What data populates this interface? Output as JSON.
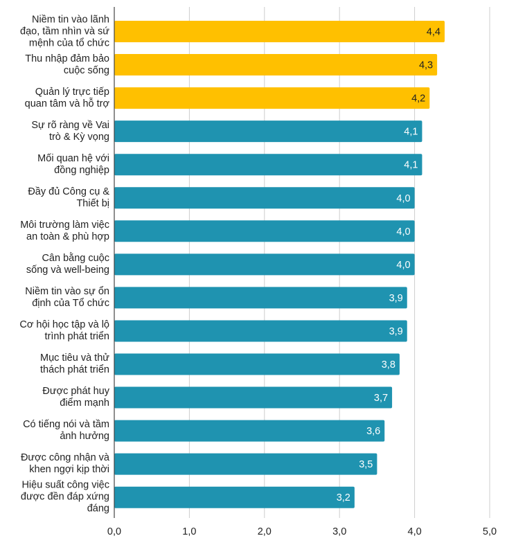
{
  "chart_data": {
    "type": "bar",
    "orientation": "horizontal",
    "categories": [
      "Niềm tin vào lãnh\nđạo, tầm nhìn và sứ\nmệnh của tổ chức",
      "Thu nhập đảm bảo\ncuộc sống",
      "Quản lý trực tiếp\nquan tâm và hỗ trợ",
      "Sự rõ ràng về Vai\ntrò & Kỳ vọng",
      "Mối quan hệ với\nđồng nghiệp",
      "Đầy đủ Công cụ &\nThiết bị",
      "Môi trường làm việc\nan toàn & phù hợp",
      "Cân bằng cuộc\nsống và well-being",
      "Niềm tin vào sự ổn\nđịnh của Tổ chức",
      "Cơ hội học tập và lộ\ntrình phát triển",
      "Mục tiêu và thử\nthách phát triển",
      "Được phát huy\nđiểm mạnh",
      "Có tiếng nói và tầm\nảnh hưởng",
      "Được công nhận và\nkhen ngợi kịp thời",
      "Hiệu suất công việc\nđược đền đáp xứng\nđáng"
    ],
    "values": [
      4.4,
      4.3,
      4.2,
      4.1,
      4.1,
      4.0,
      4.0,
      4.0,
      3.9,
      3.9,
      3.8,
      3.7,
      3.6,
      3.5,
      3.2
    ],
    "data_labels": [
      "4,4",
      "4,3",
      "4,2",
      "4,1",
      "4,1",
      "4,0",
      "4,0",
      "4,0",
      "3,9",
      "3,9",
      "3,8",
      "3,7",
      "3,6",
      "3,5",
      "3,2"
    ],
    "bar_colors": [
      "#FFC000",
      "#FFC000",
      "#FFC000",
      "#1F93B0",
      "#1F93B0",
      "#1F93B0",
      "#1F93B0",
      "#1F93B0",
      "#1F93B0",
      "#1F93B0",
      "#1F93B0",
      "#1F93B0",
      "#1F93B0",
      "#1F93B0",
      "#1F93B0"
    ],
    "xlim": [
      0,
      5
    ],
    "x_ticks": [
      0,
      1,
      2,
      3,
      4,
      5
    ],
    "x_tick_labels": [
      "0,0",
      "1,0",
      "2,0",
      "3,0",
      "4,0",
      "5,0"
    ],
    "grid": "vertical",
    "legend": "none",
    "title": "",
    "xlabel": "",
    "ylabel": ""
  }
}
